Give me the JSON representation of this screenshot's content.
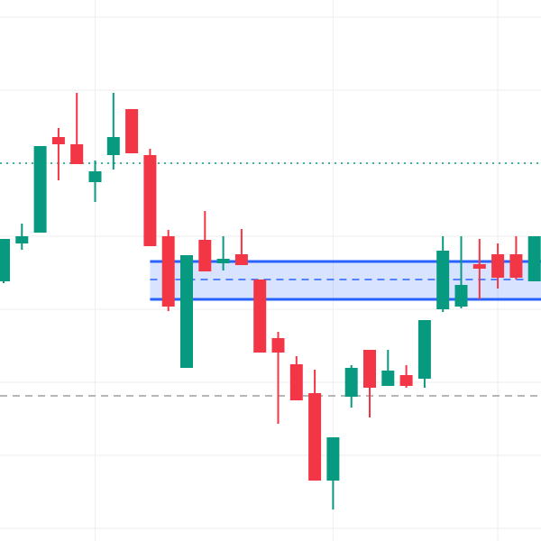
{
  "chart_data": {
    "type": "candlestick",
    "open": [
      288,
      330,
      342,
      448,
      440,
      398,
      428,
      479,
      428,
      338,
      192,
      334,
      308,
      318,
      290,
      225,
      196,
      164,
      67,
      160,
      212,
      172,
      184,
      180,
      257,
      260,
      307,
      318,
      318,
      288
    ],
    "high": [
      335,
      352,
      438,
      458,
      497,
      422,
      497,
      479,
      435,
      345,
      317,
      366,
      338,
      346,
      290,
      232,
      205,
      190,
      115,
      195,
      212,
      212,
      195,
      245,
      338,
      338,
      335,
      330,
      338,
      338
    ],
    "low": [
      286,
      323,
      342,
      400,
      418,
      376,
      412,
      430,
      327,
      255,
      192,
      299,
      300,
      306,
      209,
      130,
      156,
      67,
      35,
      148,
      137,
      172,
      170,
      170,
      254,
      258,
      268,
      280,
      290,
      288
    ],
    "close": [
      335,
      338,
      438,
      440,
      418,
      410,
      448,
      430,
      327,
      260,
      317,
      299,
      313,
      306,
      209,
      209,
      156,
      67,
      115,
      192,
      170,
      189,
      172,
      245,
      322,
      284,
      302,
      292,
      292,
      338
    ],
    "up_color": "#089981",
    "down_color": "#f23645",
    "ylim": [
      0,
      600
    ],
    "yticks": [
      581,
      500,
      419,
      338,
      257,
      176,
      95,
      14
    ],
    "xticks": [
      5,
      18,
      27
    ],
    "grid": true,
    "hlines": [
      {
        "value": 419,
        "color": "#089981",
        "style": "dotted"
      },
      {
        "value": 161,
        "color": "#9e9e9e",
        "style": "dashed"
      }
    ],
    "zone": {
      "start": 8,
      "top": 310,
      "bottom": 268,
      "mid": 290,
      "color": "#2962ff"
    }
  }
}
